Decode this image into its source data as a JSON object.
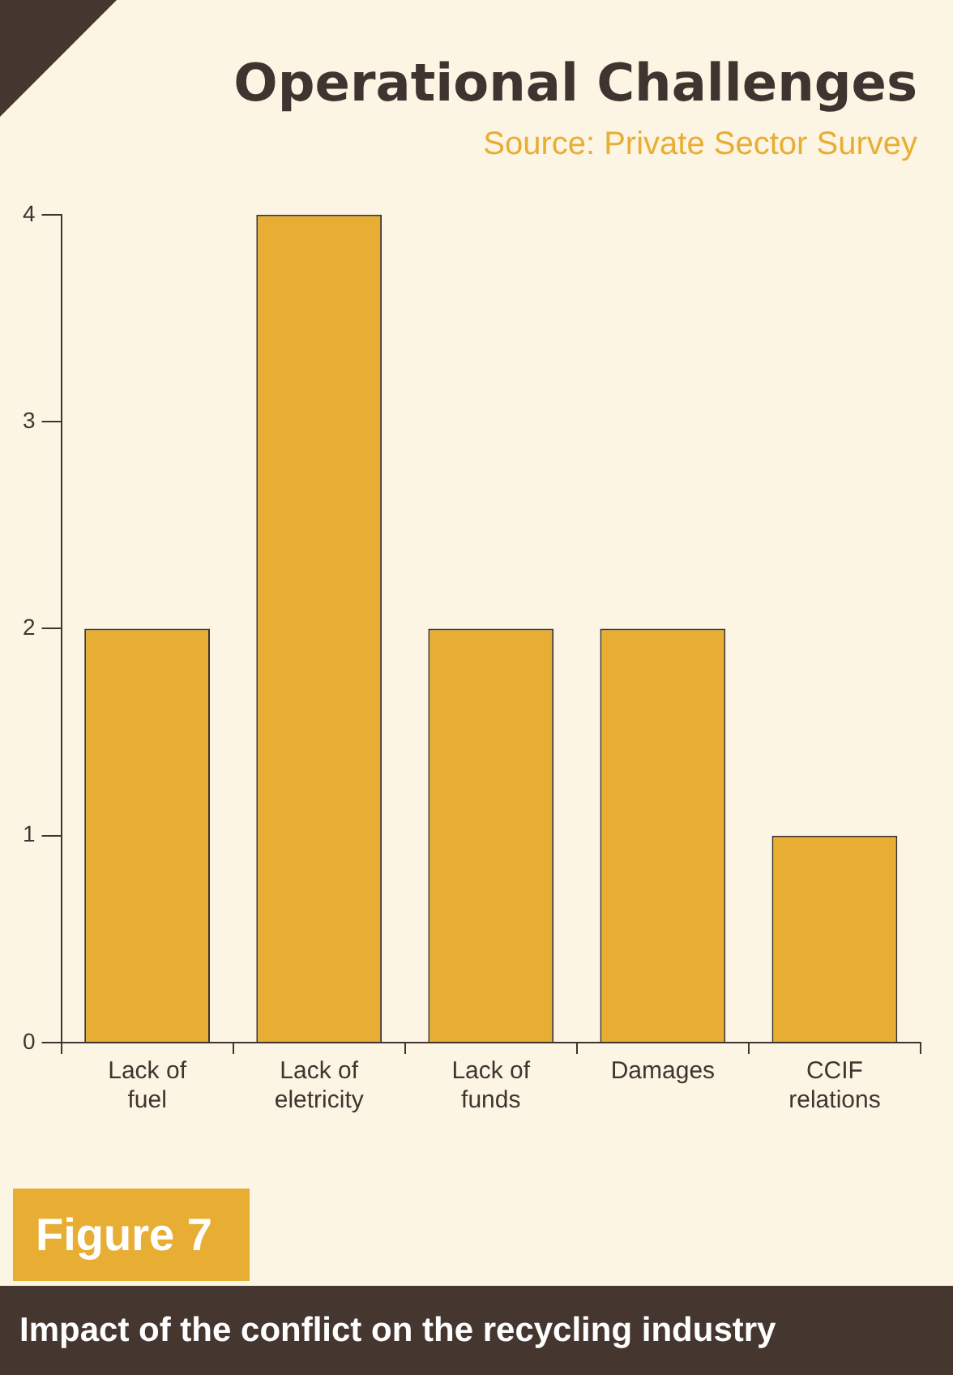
{
  "chart_data": {
    "type": "bar",
    "title": "Operational Challenges",
    "categories": [
      "Lack of fuel",
      "Lack of eletricity",
      "Lack of funds",
      "Damages",
      "CCIF relations"
    ],
    "values": [
      2,
      4,
      2,
      2,
      1
    ],
    "color": "#e8ae33",
    "ylim": [
      0,
      4
    ],
    "yticks": [
      0,
      1,
      2,
      3,
      4
    ],
    "grid": false,
    "legend": false,
    "annotations": [
      "Source: Private Sector Survey",
      "Figure 7",
      "Impact of the conflict on the recycling industry"
    ]
  }
}
